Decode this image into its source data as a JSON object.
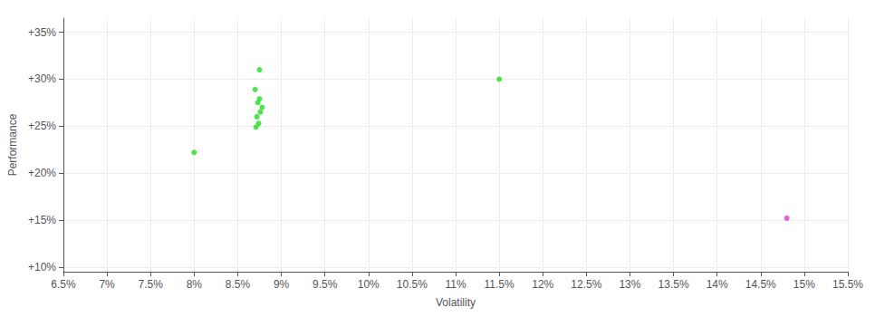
{
  "chart_data": {
    "type": "scatter",
    "xlabel": "Volatility",
    "ylabel": "Performance",
    "xlim": [
      0.065,
      0.155
    ],
    "ylim": [
      0.095,
      0.365
    ],
    "xticks": [
      {
        "value": 0.065,
        "label": "6.5%"
      },
      {
        "value": 0.07,
        "label": "7%"
      },
      {
        "value": 0.075,
        "label": "7.5%"
      },
      {
        "value": 0.08,
        "label": "8%"
      },
      {
        "value": 0.085,
        "label": "8.5%"
      },
      {
        "value": 0.09,
        "label": "9%"
      },
      {
        "value": 0.095,
        "label": "9.5%"
      },
      {
        "value": 0.1,
        "label": "10%"
      },
      {
        "value": 0.105,
        "label": "10.5%"
      },
      {
        "value": 0.11,
        "label": "11%"
      },
      {
        "value": 0.115,
        "label": "11.5%"
      },
      {
        "value": 0.12,
        "label": "12%"
      },
      {
        "value": 0.125,
        "label": "12.5%"
      },
      {
        "value": 0.13,
        "label": "13%"
      },
      {
        "value": 0.135,
        "label": "13.5%"
      },
      {
        "value": 0.14,
        "label": "14%"
      },
      {
        "value": 0.145,
        "label": "14.5%"
      },
      {
        "value": 0.15,
        "label": "15%"
      },
      {
        "value": 0.155,
        "label": "15.5%"
      }
    ],
    "yticks": [
      {
        "value": 0.1,
        "label": "+10%"
      },
      {
        "value": 0.15,
        "label": "+15%"
      },
      {
        "value": 0.2,
        "label": "+20%"
      },
      {
        "value": 0.25,
        "label": "+25%"
      },
      {
        "value": 0.3,
        "label": "+30%"
      },
      {
        "value": 0.35,
        "label": "+35%"
      }
    ],
    "grid": true,
    "series": [
      {
        "color": "#22dd22",
        "values": [
          [
            0.0875,
            0.31
          ],
          [
            0.087,
            0.289
          ],
          [
            0.0875,
            0.279
          ],
          [
            0.0873,
            0.275
          ],
          [
            0.0878,
            0.27
          ],
          [
            0.0876,
            0.265
          ],
          [
            0.0872,
            0.26
          ],
          [
            0.0874,
            0.253
          ],
          [
            0.0871,
            0.249
          ],
          [
            0.08,
            0.222
          ],
          [
            0.115,
            0.3
          ]
        ]
      },
      {
        "color": "#cc44cc",
        "values": [
          [
            0.148,
            0.152
          ]
        ]
      }
    ]
  }
}
